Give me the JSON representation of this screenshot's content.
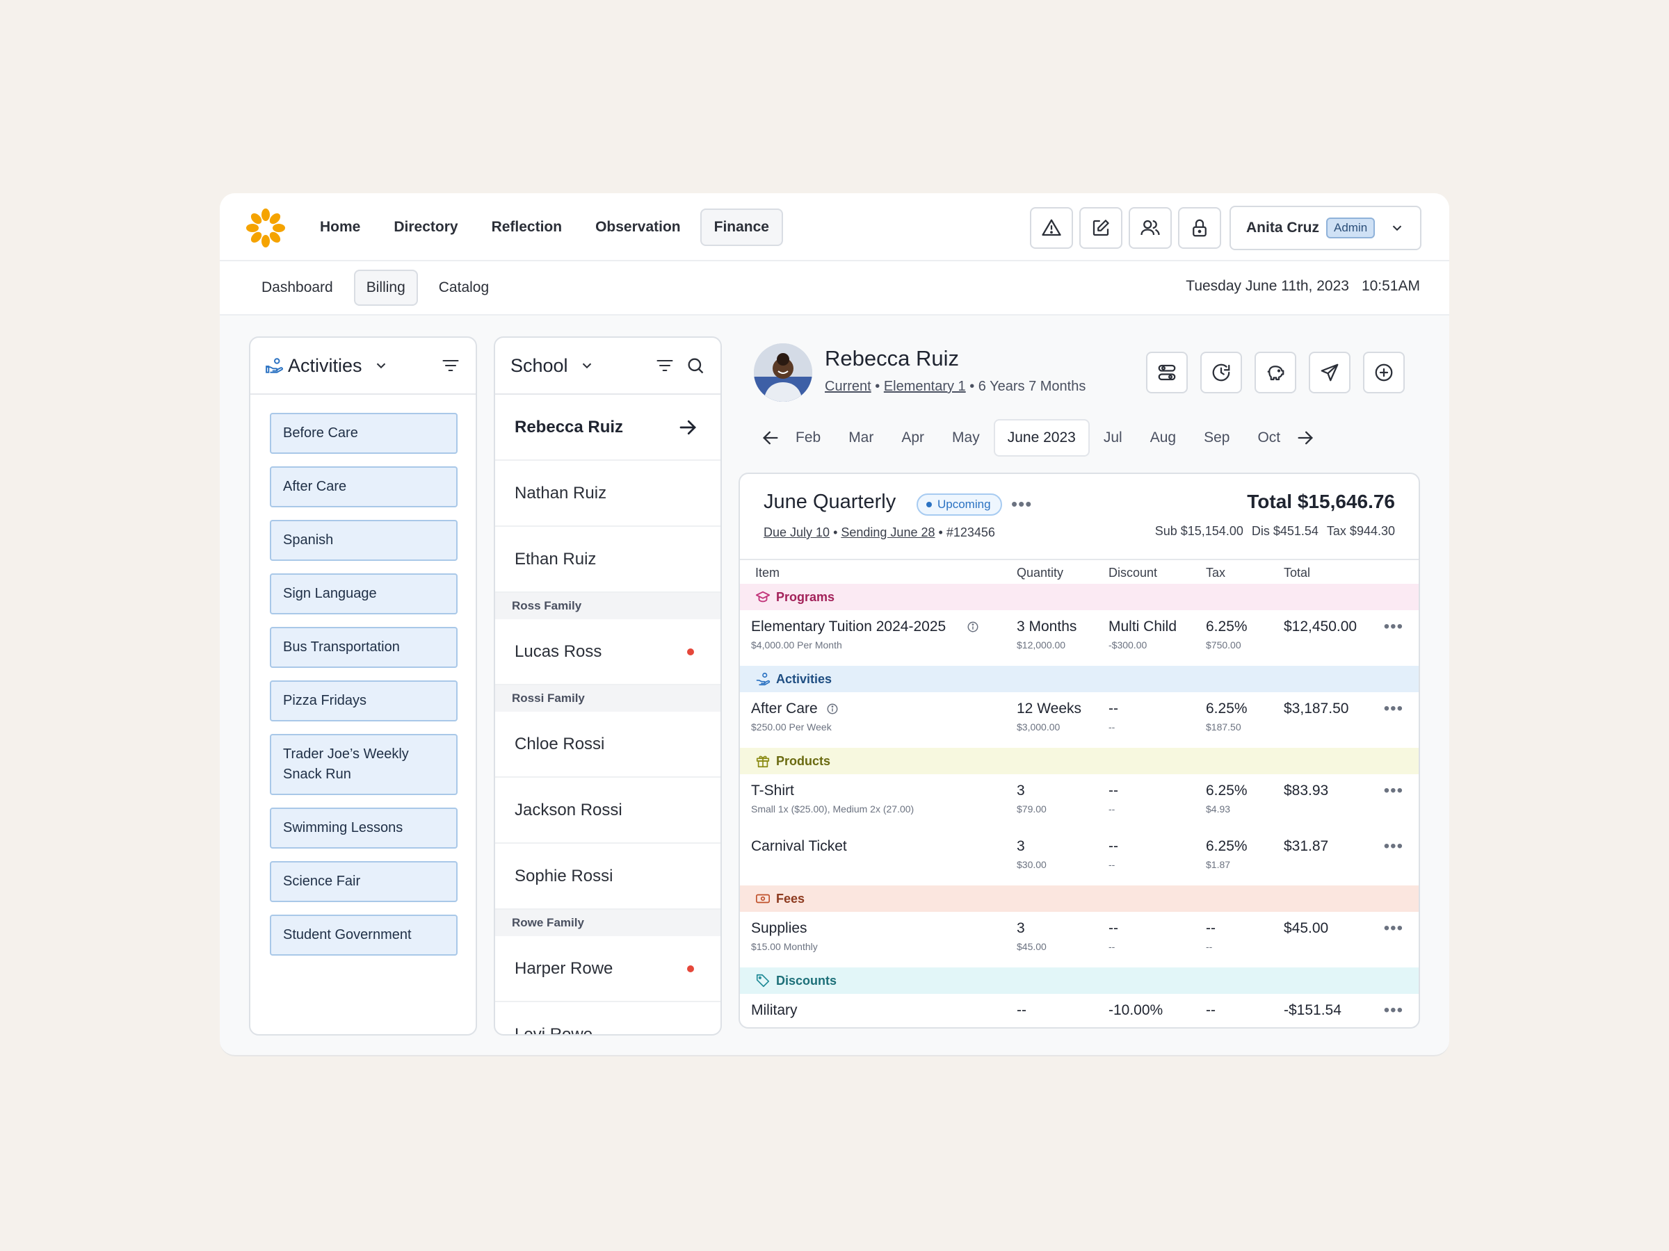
{
  "nav": {
    "items": [
      {
        "label": "Home",
        "active": false
      },
      {
        "label": "Directory",
        "active": false
      },
      {
        "label": "Reflection",
        "active": false
      },
      {
        "label": "Observation",
        "active": false
      },
      {
        "label": "Finance",
        "active": true
      }
    ],
    "icons": [
      "warning-icon",
      "edit-icon",
      "users-icon",
      "lock-icon"
    ]
  },
  "user": {
    "name": "Anita Cruz",
    "role": "Admin"
  },
  "subnav": {
    "items": [
      {
        "label": "Dashboard",
        "active": false
      },
      {
        "label": "Billing",
        "active": true
      },
      {
        "label": "Catalog",
        "active": false
      }
    ],
    "date": "Tuesday June 11th, 2023",
    "time": "10:51AM"
  },
  "activities": {
    "title": "Activities",
    "items": [
      "Before Care",
      "After Care",
      "Spanish",
      "Sign Language",
      "Bus Transportation",
      "Pizza Fridays",
      "Trader Joe’s Weekly Snack Run",
      "Swimming Lessons",
      "Science Fair",
      "Student Government"
    ]
  },
  "school": {
    "title": "School",
    "rows": [
      {
        "type": "student",
        "name": "Rebecca Ruiz",
        "selected": true
      },
      {
        "type": "student",
        "name": "Nathan Ruiz"
      },
      {
        "type": "student",
        "name": "Ethan Ruiz"
      },
      {
        "type": "family",
        "name": "Ross Family"
      },
      {
        "type": "student",
        "name": "Lucas Ross",
        "alert": true
      },
      {
        "type": "family",
        "name": "Rossi Family"
      },
      {
        "type": "student",
        "name": "Chloe Rossi"
      },
      {
        "type": "student",
        "name": "Jackson Rossi"
      },
      {
        "type": "student",
        "name": "Sophie Rossi"
      },
      {
        "type": "family",
        "name": "Rowe Family"
      },
      {
        "type": "student",
        "name": "Harper Rowe",
        "alert": true
      },
      {
        "type": "student",
        "name": "Levi Rowe"
      }
    ]
  },
  "profile": {
    "name": "Rebecca Ruiz",
    "status": "Current",
    "grade": "Elementary 1",
    "age": "6 Years 7 Months",
    "actions": [
      "settings-icon",
      "history-icon",
      "piggy-bank-icon",
      "send-icon",
      "add-icon"
    ]
  },
  "months": [
    {
      "label": "Feb"
    },
    {
      "label": "Mar"
    },
    {
      "label": "Apr"
    },
    {
      "label": "May"
    },
    {
      "label": "June 2023",
      "active": true
    },
    {
      "label": "Jul"
    },
    {
      "label": "Aug"
    },
    {
      "label": "Sep"
    },
    {
      "label": "Oct"
    }
  ],
  "invoice": {
    "title": "June Quarterly",
    "status": "Upcoming",
    "due": "Due July 10",
    "sending": "Sending June 28",
    "number": "#123456",
    "total": "Total $15,646.76",
    "sub": "Sub $15,154.00",
    "dis": "Dis $451.54",
    "tax": "Tax $944.30",
    "columns": {
      "item": "Item",
      "quantity": "Quantity",
      "discount": "Discount",
      "tax": "Tax",
      "total": "Total"
    },
    "categories": {
      "programs": {
        "label": "Programs",
        "color": "#f9e8f1",
        "text": "#a3225a"
      },
      "activities": {
        "label": "Activities",
        "color": "#e3effa",
        "text": "#1f4e82"
      },
      "products": {
        "label": "Products",
        "color": "#f7f8df",
        "text": "#6a6a10"
      },
      "fees": {
        "label": "Fees",
        "color": "#fbe6df",
        "text": "#8d3a1f"
      },
      "discounts": {
        "label": "Discounts",
        "color": "#e2f6f8",
        "text": "#1c6f78"
      }
    },
    "rows": {
      "tuition": {
        "item": "Elementary Tuition 2024-2025",
        "item_sub": "$4,000.00 Per Month",
        "qty": "3 Months",
        "qty_sub": "$12,000.00",
        "disc": "Multi Child",
        "disc_sub": "-$300.00",
        "tax": "6.25%",
        "tax_sub": "$750.00",
        "total": "$12,450.00"
      },
      "aftercare": {
        "item": "After Care",
        "item_sub": "$250.00 Per Week",
        "qty": "12 Weeks",
        "qty_sub": "$3,000.00",
        "disc": "--",
        "disc_sub": "--",
        "tax": "6.25%",
        "tax_sub": "$187.50",
        "total": "$3,187.50"
      },
      "tshirt": {
        "item": "T-Shirt",
        "item_sub": "Small 1x ($25.00), Medium 2x (27.00)",
        "qty": "3",
        "qty_sub": "$79.00",
        "disc": "--",
        "disc_sub": "--",
        "tax": "6.25%",
        "tax_sub": "$4.93",
        "total": "$83.93"
      },
      "carnival": {
        "item": "Carnival Ticket",
        "item_sub": "",
        "qty": "3",
        "qty_sub": "$30.00",
        "disc": "--",
        "disc_sub": "--",
        "tax": "6.25%",
        "tax_sub": "$1.87",
        "total": "$31.87"
      },
      "supplies": {
        "item": "Supplies",
        "item_sub": "$15.00 Monthly",
        "qty": "3",
        "qty_sub": "$45.00",
        "disc": "--",
        "disc_sub": "--",
        "tax": "--",
        "tax_sub": "--",
        "total": "$45.00"
      },
      "military": {
        "item": "Military",
        "item_sub": "",
        "qty": "--",
        "qty_sub": "",
        "disc": "-10.00%",
        "disc_sub": "",
        "tax": "--",
        "tax_sub": "",
        "total": "-$151.54"
      }
    }
  }
}
